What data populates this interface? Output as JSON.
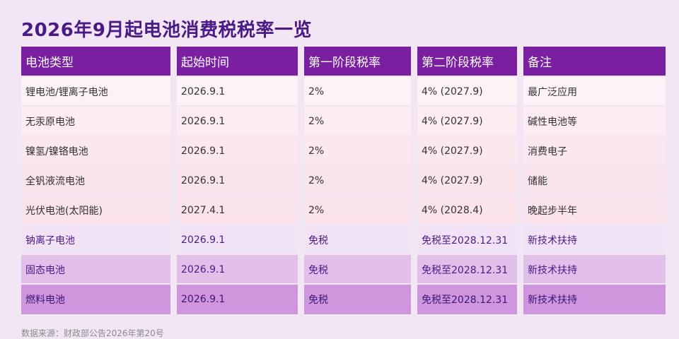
{
  "title": "2026年9月起电池消费税税率一览",
  "table": {
    "headers": [
      "电池类型",
      "起始时间",
      "第一阶段税率",
      "第二阶段税率",
      "备注"
    ],
    "rows": [
      [
        "锂电池/锂离子电池",
        "2026.9.1",
        "2%",
        "4% (2027.9)",
        "最广泛应用"
      ],
      [
        "无汞原电池",
        "2026.9.1",
        "2%",
        "4% (2027.9)",
        "碱性电池等"
      ],
      [
        "镍氢/镍铬电池",
        "2026.9.1",
        "2%",
        "4% (2027.9)",
        "消费电子"
      ],
      [
        "全钒液流电池",
        "2026.9.1",
        "2%",
        "4% (2027.9)",
        "储能"
      ],
      [
        "光伏电池(太阳能)",
        "2027.4.1",
        "2%",
        "4% (2028.4)",
        "晚起步半年"
      ],
      [
        "钠离子电池",
        "2026.9.1",
        "免税",
        "免税至2028.12.31",
        "新技术扶持"
      ],
      [
        "固态电池",
        "2026.9.1",
        "免税",
        "免税至2028.12.31",
        "新技术扶持"
      ],
      [
        "燃料电池",
        "2026.9.1",
        "免税",
        "免税至2028.12.31",
        "新技术扶持"
      ]
    ]
  },
  "source": "数据来源：财政部公告2026年第20号",
  "colors": {
    "header_bg": "#7a1fa0",
    "title": "#4a1a86",
    "page_bg": "#f2e6f5"
  }
}
